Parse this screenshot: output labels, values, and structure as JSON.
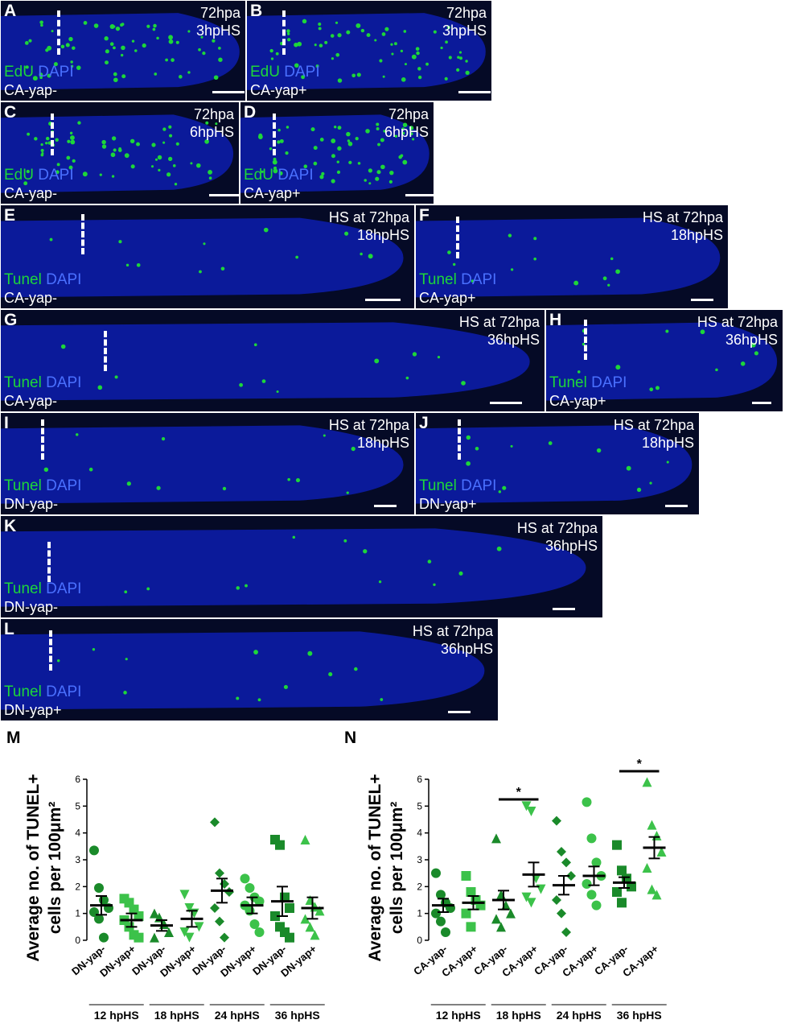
{
  "panels": [
    {
      "id": "A",
      "letter": "A",
      "tr": [
        "72hpa",
        "3hpHS"
      ],
      "stain1": "EdU",
      "stain2": "DAPI",
      "geno": "CA-yap-"
    },
    {
      "id": "B",
      "letter": "B",
      "tr": [
        "72hpa",
        "3hpHS"
      ],
      "stain1": "EdU",
      "stain2": "DAPI",
      "geno": "CA-yap+"
    },
    {
      "id": "C",
      "letter": "C",
      "tr": [
        "72hpa",
        "6hpHS"
      ],
      "stain1": "EdU",
      "stain2": "DAPI",
      "geno": "CA-yap-"
    },
    {
      "id": "D",
      "letter": "D",
      "tr": [
        "72hpa",
        "6hpHS"
      ],
      "stain1": "EdU",
      "stain2": "DAPI",
      "geno": "CA-yap+"
    },
    {
      "id": "E",
      "letter": "E",
      "tr": [
        "HS at 72hpa",
        "18hpHS"
      ],
      "stain1": "Tunel",
      "stain2": "DAPI",
      "geno": "CA-yap-"
    },
    {
      "id": "F",
      "letter": "F",
      "tr": [
        "HS at 72hpa",
        "18hpHS"
      ],
      "stain1": "Tunel",
      "stain2": "DAPI",
      "geno": "CA-yap+"
    },
    {
      "id": "G",
      "letter": "G",
      "tr": [
        "HS at 72hpa",
        "36hpHS"
      ],
      "stain1": "Tunel",
      "stain2": "DAPI",
      "geno": "CA-yap-"
    },
    {
      "id": "H",
      "letter": "H",
      "tr": [
        "HS at 72hpa",
        "36hpHS"
      ],
      "stain1": "Tunel",
      "stain2": "DAPI",
      "geno": "CA-yap+"
    },
    {
      "id": "I",
      "letter": "I",
      "tr": [
        "HS at 72hpa",
        "18hpHS"
      ],
      "stain1": "Tunel",
      "stain2": "DAPI",
      "geno": "DN-yap-"
    },
    {
      "id": "J",
      "letter": "J",
      "tr": [
        "HS at 72hpa",
        "18hpHS"
      ],
      "stain1": "Tunel",
      "stain2": "DAPI",
      "geno": "DN-yap+"
    },
    {
      "id": "K",
      "letter": "K",
      "tr": [
        "HS at 72hpa",
        "36hpHS"
      ],
      "stain1": "Tunel",
      "stain2": "DAPI",
      "geno": "DN-yap-"
    },
    {
      "id": "L",
      "letter": "L",
      "tr": [
        "HS at 72hpa",
        "36hpHS"
      ],
      "stain1": "Tunel",
      "stain2": "DAPI",
      "geno": "DN-yap+"
    }
  ],
  "colors": {
    "dapi": "#0b1a9a",
    "tunel_green": "#1dd63a",
    "dark_green": "#1a8a2a",
    "light_green": "#3cc24a",
    "background": "#050a26"
  },
  "chart_data": [
    {
      "type": "scatter",
      "panel_letter": "M",
      "ylabel_line1": "Average no. of TUNEL+",
      "ylabel_line2": "cells per 100μm²",
      "ylim": [
        0,
        6
      ],
      "yticks": [
        "0",
        "1",
        "2",
        "3",
        "4",
        "5",
        "6"
      ],
      "categories": [
        "DN-yap-",
        "DN-yap+",
        "DN-yap-",
        "DN-yap+",
        "DN-yap-",
        "DN-yap+",
        "DN-yap-",
        "DN-yap+"
      ],
      "groups": [
        "12 hpHS",
        "18 hpHS",
        "24 hpHS",
        "36 hpHS"
      ],
      "series": [
        {
          "shape": "circle",
          "color": "#1a8a2a",
          "mean": 1.3,
          "sem": 0.35,
          "points": [
            3.35,
            1.95,
            1.5,
            1.2,
            1.05,
            0.8,
            0.1
          ]
        },
        {
          "shape": "square",
          "color": "#3cc24a",
          "mean": 0.75,
          "sem": 0.25,
          "points": [
            1.55,
            1.4,
            1.15,
            0.9,
            0.75,
            0.5,
            0.2,
            0.1
          ]
        },
        {
          "shape": "triangle",
          "color": "#1a8a2a",
          "mean": 0.55,
          "sem": 0.2,
          "points": [
            1.0,
            0.85,
            0.6,
            0.3,
            0.1
          ]
        },
        {
          "shape": "triangle-down",
          "color": "#3cc24a",
          "mean": 0.8,
          "sem": 0.3,
          "points": [
            1.7,
            1.2,
            1.0,
            0.5,
            0.3,
            0.1
          ]
        },
        {
          "shape": "diamond",
          "color": "#1a8a2a",
          "mean": 1.85,
          "sem": 0.45,
          "points": [
            4.4,
            2.5,
            2.1,
            1.8,
            1.2,
            0.7,
            0.1
          ]
        },
        {
          "shape": "circle",
          "color": "#3cc24a",
          "mean": 1.3,
          "sem": 0.3,
          "points": [
            2.3,
            1.95,
            1.6,
            1.45,
            1.3,
            1.1,
            0.6,
            0.3
          ]
        },
        {
          "shape": "square",
          "color": "#1a8a2a",
          "mean": 1.45,
          "sem": 0.55,
          "points": [
            3.75,
            3.55,
            1.6,
            1.2,
            0.9,
            0.5,
            0.3,
            0.1
          ]
        },
        {
          "shape": "triangle",
          "color": "#3cc24a",
          "mean": 1.2,
          "sem": 0.4,
          "points": [
            3.75,
            1.5,
            1.25,
            1.1,
            0.8,
            0.5,
            0.2
          ]
        }
      ]
    },
    {
      "type": "scatter",
      "panel_letter": "N",
      "ylabel_line1": "Average no. of TUNEL+",
      "ylabel_line2": "cells per 100μm²",
      "ylim": [
        0,
        6
      ],
      "yticks": [
        "0",
        "1",
        "2",
        "3",
        "4",
        "5",
        "6"
      ],
      "categories": [
        "CA-yap-",
        "CA-yap+",
        "CA-yap-",
        "CA-yap+",
        "CA-yap-",
        "CA-yap+",
        "CA-yap-",
        "CA-yap+"
      ],
      "groups": [
        "12 hpHS",
        "18 hpHS",
        "24 hpHS",
        "36 hpHS"
      ],
      "significance": [
        {
          "from": 2,
          "to": 3,
          "label": "*",
          "y": 5.25
        },
        {
          "from": 6,
          "to": 7,
          "label": "*",
          "y": 6.3
        }
      ],
      "series": [
        {
          "shape": "circle",
          "color": "#1a8a2a",
          "mean": 1.3,
          "sem": 0.25,
          "points": [
            2.5,
            1.7,
            1.4,
            1.2,
            1.0,
            0.7,
            0.3
          ]
        },
        {
          "shape": "square",
          "color": "#3cc24a",
          "mean": 1.4,
          "sem": 0.25,
          "points": [
            2.4,
            1.8,
            1.5,
            1.3,
            1.0,
            0.5
          ]
        },
        {
          "shape": "triangle",
          "color": "#1a8a2a",
          "mean": 1.5,
          "sem": 0.35,
          "points": [
            3.8,
            1.7,
            1.3,
            1.0,
            0.8,
            0.5
          ]
        },
        {
          "shape": "triangle-down",
          "color": "#3cc24a",
          "mean": 2.45,
          "sem": 0.45,
          "points": [
            5.0,
            4.8,
            2.3,
            1.9,
            1.6,
            1.4
          ]
        },
        {
          "shape": "diamond",
          "color": "#1a8a2a",
          "mean": 2.05,
          "sem": 0.35,
          "points": [
            4.45,
            3.3,
            2.9,
            2.4,
            1.5,
            1.0,
            0.3
          ]
        },
        {
          "shape": "circle",
          "color": "#3cc24a",
          "mean": 2.4,
          "sem": 0.35,
          "points": [
            5.15,
            3.8,
            2.9,
            2.4,
            2.1,
            1.7,
            1.3
          ]
        },
        {
          "shape": "square",
          "color": "#1a8a2a",
          "mean": 2.15,
          "sem": 0.2,
          "points": [
            3.55,
            2.6,
            2.3,
            2.0,
            1.8,
            1.4
          ]
        },
        {
          "shape": "triangle",
          "color": "#3cc24a",
          "mean": 3.45,
          "sem": 0.4,
          "points": [
            5.9,
            4.3,
            3.9,
            3.3,
            2.7,
            1.9,
            1.7
          ]
        }
      ]
    }
  ]
}
